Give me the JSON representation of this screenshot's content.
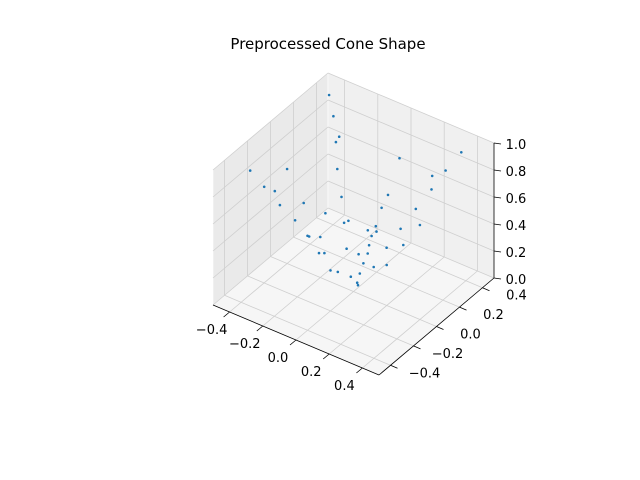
{
  "chart_data": {
    "type": "scatter",
    "title": "Preprocessed Cone Shape",
    "xlabel": "",
    "ylabel": "",
    "zlabel": "",
    "xlim": [
      -0.5,
      0.5
    ],
    "ylim": [
      -0.5,
      0.5
    ],
    "zlim": [
      0.0,
      1.0
    ],
    "xticks": [
      "−0.4",
      "−0.2",
      "0.0",
      "0.2",
      "0.4"
    ],
    "yticks": [
      "−0.4",
      "−0.2",
      "0.0",
      "0.2",
      "0.4"
    ],
    "zticks": [
      "0.0",
      "0.2",
      "0.4",
      "0.6",
      "0.8",
      "1.0"
    ],
    "grid": true,
    "marker_color": "#1f77b4",
    "series": [
      {
        "points": [
          [
            0.02,
            0.01,
            0.05
          ],
          [
            -0.03,
            0.02,
            0.08
          ],
          [
            0.05,
            -0.04,
            0.12
          ],
          [
            -0.06,
            -0.05,
            0.15
          ],
          [
            0.08,
            0.06,
            0.18
          ],
          [
            -0.09,
            0.07,
            0.22
          ],
          [
            0.1,
            -0.09,
            0.25
          ],
          [
            -0.12,
            -0.08,
            0.28
          ],
          [
            0.13,
            0.1,
            0.32
          ],
          [
            -0.14,
            0.12,
            0.35
          ],
          [
            0.15,
            -0.13,
            0.38
          ],
          [
            -0.17,
            -0.14,
            0.42
          ],
          [
            0.18,
            0.15,
            0.45
          ],
          [
            -0.19,
            0.17,
            0.48
          ],
          [
            0.21,
            -0.18,
            0.52
          ],
          [
            -0.22,
            -0.19,
            0.55
          ],
          [
            0.23,
            0.21,
            0.58
          ],
          [
            -0.25,
            0.22,
            0.62
          ],
          [
            0.26,
            -0.24,
            0.65
          ],
          [
            -0.27,
            -0.25,
            0.68
          ],
          [
            0.29,
            0.26,
            0.72
          ],
          [
            -0.3,
            0.28,
            0.75
          ],
          [
            0.31,
            -0.29,
            0.78
          ],
          [
            -0.33,
            -0.3,
            0.82
          ],
          [
            0.34,
            0.31,
            0.85
          ],
          [
            -0.35,
            0.33,
            0.88
          ],
          [
            0.37,
            -0.34,
            0.92
          ],
          [
            -0.38,
            -0.35,
            0.95
          ],
          [
            0.4,
            0.36,
            0.98
          ],
          [
            -0.41,
            0.38,
            0.97
          ],
          [
            0.0,
            0.2,
            0.3
          ],
          [
            0.0,
            -0.2,
            0.3
          ],
          [
            0.2,
            0.0,
            0.3
          ],
          [
            -0.2,
            0.0,
            0.3
          ],
          [
            0.0,
            0.3,
            0.5
          ],
          [
            0.0,
            -0.3,
            0.5
          ],
          [
            0.3,
            0.0,
            0.5
          ],
          [
            -0.3,
            0.0,
            0.5
          ],
          [
            0.0,
            0.4,
            0.7
          ],
          [
            0.0,
            -0.4,
            0.7
          ],
          [
            0.4,
            0.0,
            0.7
          ],
          [
            -0.4,
            0.0,
            0.7
          ],
          [
            0.28,
            0.28,
            0.8
          ],
          [
            -0.28,
            0.28,
            0.8
          ],
          [
            0.28,
            -0.28,
            0.8
          ],
          [
            -0.28,
            -0.28,
            0.8
          ],
          [
            0.1,
            0.1,
            0.6
          ],
          [
            -0.1,
            -0.1,
            0.6
          ],
          [
            0.1,
            -0.1,
            0.4
          ],
          [
            -0.1,
            0.1,
            0.4
          ]
        ]
      }
    ]
  }
}
